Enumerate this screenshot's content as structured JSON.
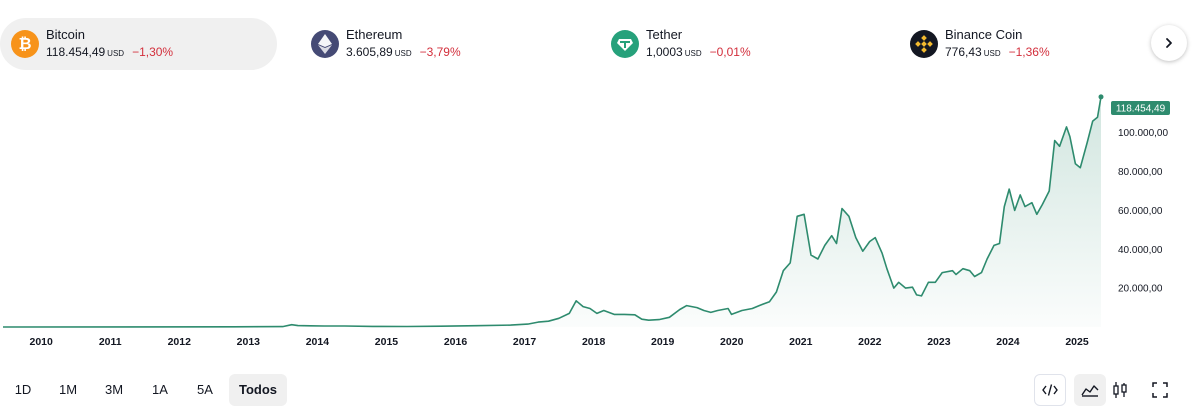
{
  "tickers": [
    {
      "name": "Bitcoin",
      "price": "118.454,49",
      "unit": "USD",
      "change": "−1,30%",
      "icon": "bitcoin-icon",
      "icon_color": "#f7931a",
      "icon_glyph": "₿",
      "active": true
    },
    {
      "name": "Ethereum",
      "price": "3.605,89",
      "unit": "USD",
      "change": "−3,79%",
      "icon": "ethereum-icon",
      "icon_color": "#454a75",
      "icon_glyph": "",
      "active": false
    },
    {
      "name": "Tether",
      "price": "1,0003",
      "unit": "USD",
      "change": "−0,01%",
      "icon": "tether-icon",
      "icon_color": "#26a17b",
      "icon_glyph": "",
      "active": false
    },
    {
      "name": "Binance Coin",
      "price": "776,43",
      "unit": "USD",
      "change": "−1,36%",
      "icon": "binance-coin-icon",
      "icon_color": "#131722",
      "icon_glyph": "",
      "active": false
    }
  ],
  "colors": {
    "negative": "#d32f3c",
    "line": "#2e8b6e",
    "badge": "#2e8b6e"
  },
  "next_icon": "chevron-right-icon",
  "range_buttons": [
    "1D",
    "1M",
    "3M",
    "1A",
    "5A",
    "Todos"
  ],
  "active_range": "Todos",
  "tool_icons": [
    "embed-code-icon",
    "area-chart-icon",
    "candlestick-chart-icon",
    "fullscreen-icon"
  ],
  "chart_data": {
    "type": "area",
    "series_name": "Bitcoin",
    "current_value": 118454.49,
    "current_label": "118.454,49",
    "ylim": [
      0,
      122000
    ],
    "y_ticks": [
      20000,
      40000,
      60000,
      80000,
      100000
    ],
    "y_tick_labels": [
      "20.000,00",
      "40.000,00",
      "60.000,00",
      "80.000,00",
      "100.000,00"
    ],
    "x_ticks": [
      2010,
      2011,
      2012,
      2013,
      2014,
      2015,
      2016,
      2017,
      2018,
      2019,
      2020,
      2021,
      2022,
      2023,
      2024,
      2025
    ],
    "x_tick_labels": [
      "2010",
      "2011",
      "2012",
      "2013",
      "2014",
      "2015",
      "2016",
      "2017",
      "2018",
      "2019",
      "2020",
      "2021",
      "2022",
      "2023",
      "2024",
      "2025"
    ],
    "xlim": [
      2009.65,
      2025.55
    ],
    "grid": false,
    "points": [
      [
        2009.65,
        0
      ],
      [
        2013.0,
        100
      ],
      [
        2013.7,
        200
      ],
      [
        2013.83,
        1200
      ],
      [
        2013.92,
        700
      ],
      [
        2014.1,
        600
      ],
      [
        2014.3,
        500
      ],
      [
        2014.6,
        500
      ],
      [
        2015.0,
        300
      ],
      [
        2015.5,
        250
      ],
      [
        2016.0,
        400
      ],
      [
        2016.5,
        650
      ],
      [
        2017.0,
        1000
      ],
      [
        2017.25,
        1500
      ],
      [
        2017.4,
        2500
      ],
      [
        2017.55,
        3000
      ],
      [
        2017.7,
        4500
      ],
      [
        2017.85,
        7000
      ],
      [
        2017.95,
        13500
      ],
      [
        2018.05,
        10500
      ],
      [
        2018.15,
        9500
      ],
      [
        2018.25,
        7000
      ],
      [
        2018.35,
        8500
      ],
      [
        2018.5,
        6500
      ],
      [
        2018.65,
        6500
      ],
      [
        2018.8,
        6300
      ],
      [
        2018.9,
        4000
      ],
      [
        2019.0,
        3500
      ],
      [
        2019.15,
        3800
      ],
      [
        2019.3,
        5000
      ],
      [
        2019.45,
        9000
      ],
      [
        2019.55,
        11000
      ],
      [
        2019.7,
        10000
      ],
      [
        2019.8,
        8500
      ],
      [
        2019.9,
        7500
      ],
      [
        2020.0,
        8500
      ],
      [
        2020.15,
        9500
      ],
      [
        2020.2,
        6500
      ],
      [
        2020.35,
        8500
      ],
      [
        2020.5,
        9500
      ],
      [
        2020.6,
        11000
      ],
      [
        2020.75,
        13000
      ],
      [
        2020.85,
        18000
      ],
      [
        2020.95,
        29000
      ],
      [
        2021.05,
        33000
      ],
      [
        2021.1,
        45000
      ],
      [
        2021.15,
        57000
      ],
      [
        2021.25,
        58000
      ],
      [
        2021.35,
        37000
      ],
      [
        2021.45,
        35000
      ],
      [
        2021.55,
        42000
      ],
      [
        2021.65,
        47000
      ],
      [
        2021.72,
        43000
      ],
      [
        2021.8,
        61000
      ],
      [
        2021.9,
        57000
      ],
      [
        2022.0,
        46000
      ],
      [
        2022.1,
        39000
      ],
      [
        2022.2,
        44000
      ],
      [
        2022.28,
        46000
      ],
      [
        2022.38,
        38000
      ],
      [
        2022.45,
        30000
      ],
      [
        2022.55,
        20000
      ],
      [
        2022.62,
        23000
      ],
      [
        2022.72,
        20000
      ],
      [
        2022.82,
        20500
      ],
      [
        2022.88,
        16500
      ],
      [
        2022.95,
        16000
      ],
      [
        2023.05,
        23000
      ],
      [
        2023.15,
        23000
      ],
      [
        2023.25,
        28000
      ],
      [
        2023.4,
        29000
      ],
      [
        2023.45,
        27000
      ],
      [
        2023.55,
        30000
      ],
      [
        2023.65,
        29000
      ],
      [
        2023.72,
        26000
      ],
      [
        2023.82,
        28000
      ],
      [
        2023.9,
        35000
      ],
      [
        2024.0,
        42000
      ],
      [
        2024.08,
        43000
      ],
      [
        2024.15,
        62000
      ],
      [
        2024.22,
        71000
      ],
      [
        2024.3,
        60000
      ],
      [
        2024.38,
        68000
      ],
      [
        2024.45,
        62000
      ],
      [
        2024.55,
        64000
      ],
      [
        2024.62,
        58000
      ],
      [
        2024.7,
        63000
      ],
      [
        2024.8,
        70000
      ],
      [
        2024.88,
        96000
      ],
      [
        2024.95,
        93000
      ],
      [
        2025.05,
        103000
      ],
      [
        2025.1,
        98000
      ],
      [
        2025.18,
        84000
      ],
      [
        2025.25,
        82000
      ],
      [
        2025.35,
        95000
      ],
      [
        2025.43,
        106000
      ],
      [
        2025.5,
        108000
      ],
      [
        2025.55,
        118454.49
      ]
    ]
  }
}
